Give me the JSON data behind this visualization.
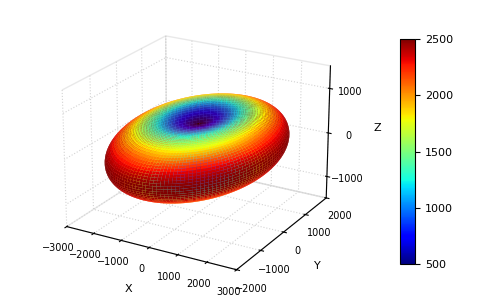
{
  "eps_a": 2500,
  "eps_c": 500,
  "colormap": "jet",
  "clim_min": 500,
  "clim_max": 2500,
  "colorbar_ticks": [
    500,
    1000,
    1500,
    2000,
    2500
  ],
  "xlabel": "X",
  "ylabel": "Y",
  "zlabel": "Z",
  "xlim": [
    -3000,
    3000
  ],
  "ylim": [
    -2000,
    2000
  ],
  "zlim": [
    -1500,
    1500
  ],
  "xticks": [
    -3000,
    -2000,
    -1000,
    0,
    1000,
    2000,
    3000
  ],
  "yticks": [
    -2000,
    -1000,
    0,
    1000,
    2000
  ],
  "zticks": [
    -1000,
    0,
    1000
  ],
  "elev": 22,
  "azim": -60,
  "n_theta": 150,
  "n_phi": 150,
  "background_color": "white",
  "figsize": [
    5.0,
    3.0
  ],
  "dpi": 100
}
